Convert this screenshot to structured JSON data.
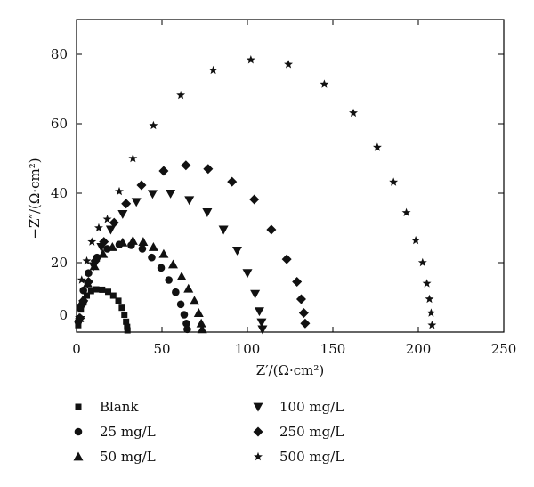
{
  "chart_data": {
    "type": "scatter",
    "title": "",
    "xlabel": "Z′/(Ω·cm²)",
    "ylabel": "−Z″/(Ω·cm²)",
    "xlim": [
      0,
      250
    ],
    "ylim": [
      0,
      90
    ],
    "xticks": [
      0,
      50,
      100,
      150,
      200,
      250
    ],
    "yticks": [
      0,
      20,
      40,
      60,
      80
    ],
    "grid": false,
    "legend_position": "bottom",
    "series": [
      {
        "name": "Blank",
        "marker": "square",
        "points": [
          [
            1.0,
            2.0
          ],
          [
            1.5,
            4.0
          ],
          [
            2.5,
            6.5
          ],
          [
            4.0,
            8.5
          ],
          [
            6.0,
            10.5
          ],
          [
            8.5,
            11.8
          ],
          [
            11.5,
            12.3
          ],
          [
            15.0,
            12.2
          ],
          [
            18.5,
            11.6
          ],
          [
            21.5,
            10.5
          ],
          [
            24.5,
            9.0
          ],
          [
            26.5,
            7.0
          ],
          [
            28.0,
            5.0
          ],
          [
            29.0,
            3.0
          ],
          [
            29.6,
            1.5
          ],
          [
            29.8,
            0.5
          ]
        ]
      },
      {
        "name": "25 mg/L",
        "marker": "circle",
        "points": [
          [
            1.0,
            3.0
          ],
          [
            2.0,
            7.0
          ],
          [
            4.0,
            12.0
          ],
          [
            7.0,
            17.0
          ],
          [
            12.0,
            21.5
          ],
          [
            18.0,
            24.0
          ],
          [
            25.0,
            25.2
          ],
          [
            32.0,
            25.0
          ],
          [
            38.5,
            24.0
          ],
          [
            44.0,
            21.5
          ],
          [
            49.5,
            18.5
          ],
          [
            54.0,
            15.0
          ],
          [
            58.0,
            11.5
          ],
          [
            61.0,
            8.0
          ],
          [
            63.0,
            5.0
          ],
          [
            64.3,
            2.5
          ],
          [
            64.8,
            0.8
          ]
        ]
      },
      {
        "name": "50 mg/L",
        "marker": "triangle",
        "points": [
          [
            1.5,
            4.0
          ],
          [
            3.5,
            9.0
          ],
          [
            6.5,
            14.0
          ],
          [
            10.5,
            19.0
          ],
          [
            15.5,
            22.5
          ],
          [
            21.0,
            24.5
          ],
          [
            27.0,
            25.8
          ],
          [
            33.0,
            26.3
          ],
          [
            39.0,
            26.0
          ],
          [
            45.0,
            24.5
          ],
          [
            51.0,
            22.5
          ],
          [
            56.5,
            19.5
          ],
          [
            61.5,
            16.0
          ],
          [
            65.5,
            12.5
          ],
          [
            69.0,
            9.0
          ],
          [
            71.5,
            5.5
          ],
          [
            73.0,
            2.5
          ],
          [
            73.5,
            0.8
          ]
        ]
      },
      {
        "name": "100 mg/L",
        "marker": "triangle-down",
        "points": [
          [
            2.0,
            3.5
          ],
          [
            4.0,
            8.0
          ],
          [
            6.5,
            14.0
          ],
          [
            10.0,
            19.0
          ],
          [
            14.5,
            24.5
          ],
          [
            20.0,
            29.5
          ],
          [
            27.0,
            34.0
          ],
          [
            35.0,
            37.5
          ],
          [
            44.5,
            39.8
          ],
          [
            55.0,
            39.9
          ],
          [
            66.0,
            38.0
          ],
          [
            76.5,
            34.5
          ],
          [
            86.0,
            29.5
          ],
          [
            94.0,
            23.5
          ],
          [
            100.0,
            17.0
          ],
          [
            104.5,
            11.0
          ],
          [
            107.0,
            6.0
          ],
          [
            108.3,
            2.8
          ],
          [
            108.8,
            0.8
          ]
        ]
      },
      {
        "name": "250 mg/L",
        "marker": "diamond",
        "points": [
          [
            2.0,
            4.0
          ],
          [
            4.0,
            9.0
          ],
          [
            7.0,
            14.5
          ],
          [
            11.0,
            20.5
          ],
          [
            16.0,
            26.0
          ],
          [
            22.0,
            31.5
          ],
          [
            29.0,
            37.0
          ],
          [
            38.0,
            42.3
          ],
          [
            51.0,
            46.4
          ],
          [
            64.0,
            48.0
          ],
          [
            77.0,
            47.0
          ],
          [
            91.0,
            43.3
          ],
          [
            104.0,
            38.2
          ],
          [
            114.0,
            29.5
          ],
          [
            123.0,
            21.0
          ],
          [
            129.0,
            14.5
          ],
          [
            131.5,
            9.5
          ],
          [
            133.0,
            5.5
          ],
          [
            133.8,
            2.5
          ]
        ]
      },
      {
        "name": "500 mg/L",
        "marker": "star",
        "points": [
          [
            3.0,
            15.0
          ],
          [
            6.0,
            20.5
          ],
          [
            9.0,
            26.0
          ],
          [
            13.0,
            30.0
          ],
          [
            18.0,
            32.5
          ],
          [
            25.0,
            40.5
          ],
          [
            33.0,
            50.0
          ],
          [
            45.0,
            59.5
          ],
          [
            61.0,
            68.2
          ],
          [
            80.0,
            75.4
          ],
          [
            102.0,
            78.4
          ],
          [
            124.0,
            77.1
          ],
          [
            145.0,
            71.4
          ],
          [
            162.0,
            63.1
          ],
          [
            176.0,
            53.2
          ],
          [
            185.5,
            43.2
          ],
          [
            193.0,
            34.4
          ],
          [
            198.5,
            26.4
          ],
          [
            202.5,
            20.0
          ],
          [
            205.0,
            14.0
          ],
          [
            206.5,
            9.5
          ],
          [
            207.5,
            5.5
          ],
          [
            208.0,
            2.0
          ]
        ]
      }
    ]
  }
}
